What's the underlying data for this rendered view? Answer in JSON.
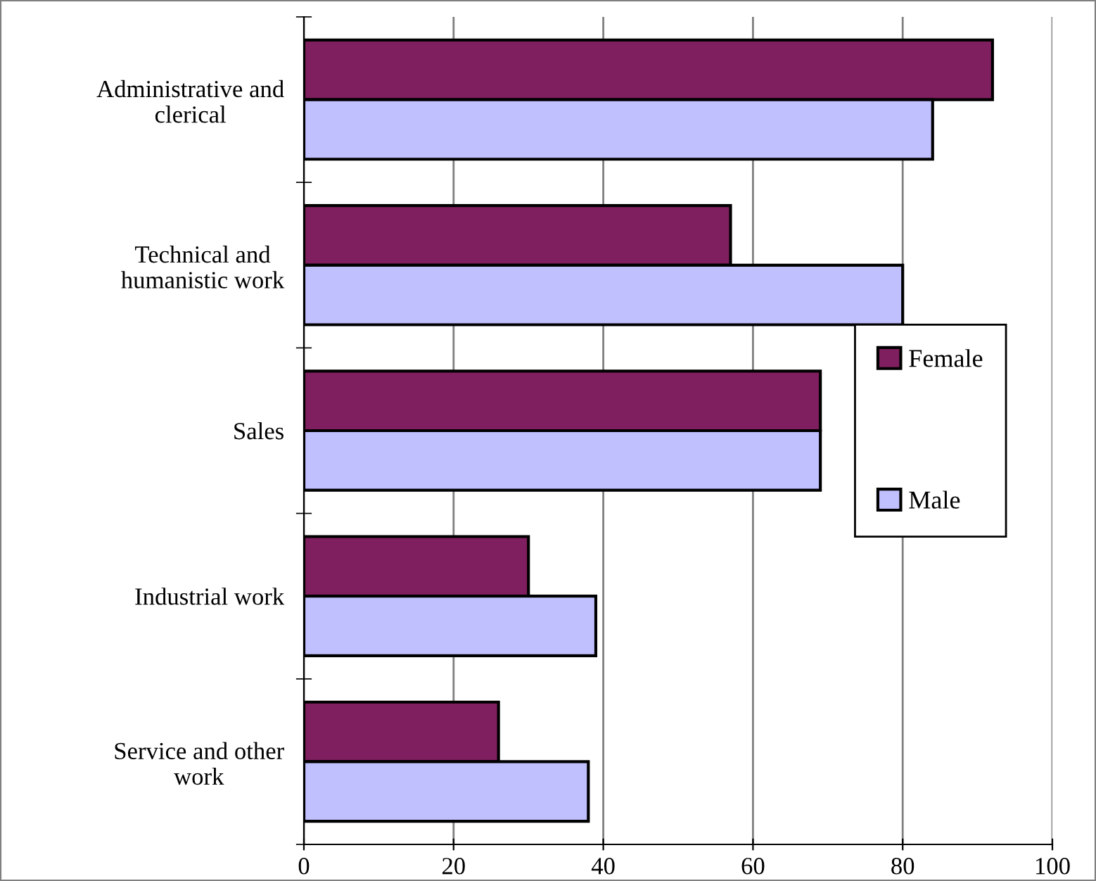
{
  "chart_data": {
    "type": "bar",
    "orientation": "horizontal",
    "categories": [
      "Administrative and\nclerical",
      "Technical and\nhumanistic work",
      "Sales",
      "Industrial work",
      "Service and other\nwork"
    ],
    "series": [
      {
        "name": "Female",
        "color": "#7f1f5f",
        "values": [
          92,
          57,
          69,
          30,
          26
        ]
      },
      {
        "name": "Male",
        "color": "#c0c0ff",
        "values": [
          84,
          80,
          69,
          39,
          38
        ]
      }
    ],
    "xlim": [
      0,
      100
    ],
    "xticks": [
      0,
      20,
      40,
      60,
      80,
      100
    ],
    "grid": "x",
    "legend": "right"
  }
}
